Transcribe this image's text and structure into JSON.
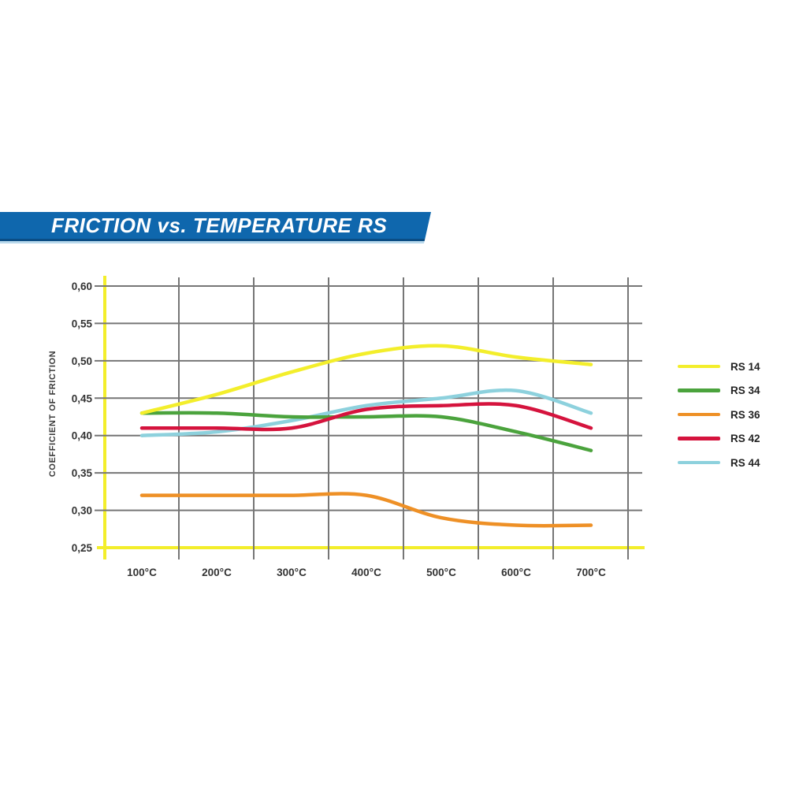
{
  "page": {
    "background": "#ffffff"
  },
  "banner": {
    "title": "FRICTION vs. TEMPERATURE RS",
    "bg_color": "#0f67ad",
    "edge_color": "#0b4d84",
    "strip_color": "#b9d9ec",
    "text_color": "#ffffff"
  },
  "chart_data": {
    "type": "line",
    "title": "FRICTION vs. TEMPERATURE RS",
    "xlabel": "",
    "ylabel": "COEFFICIENT OF FRICTION",
    "x_unit": "°C",
    "x": [
      100,
      200,
      300,
      400,
      500,
      600,
      700
    ],
    "x_tick_labels": [
      "100°C",
      "200°C",
      "300°C",
      "400°C",
      "500°C",
      "600°C",
      "700°C"
    ],
    "y_tick_values": [
      0.6,
      0.55,
      0.5,
      0.45,
      0.4,
      0.35,
      0.3,
      0.25
    ],
    "y_tick_labels": [
      "0,60",
      "0,55",
      "0,50",
      "0,45",
      "0,40",
      "0,35",
      "0,30",
      "0,25"
    ],
    "ylim": [
      0.25,
      0.6
    ],
    "grid": true,
    "grid_color": "#767676",
    "axis_color": "#f3ee2b",
    "legend_position": "right",
    "series": [
      {
        "name": "RS 14",
        "color": "#f3ee2b",
        "values": [
          0.43,
          0.455,
          0.485,
          0.51,
          0.52,
          0.505,
          0.495
        ]
      },
      {
        "name": "RS 34",
        "color": "#4ba33d",
        "values": [
          0.43,
          0.43,
          0.425,
          0.425,
          0.425,
          0.405,
          0.38
        ]
      },
      {
        "name": "RS 36",
        "color": "#ee9026",
        "values": [
          0.32,
          0.32,
          0.32,
          0.32,
          0.29,
          0.28,
          0.28
        ]
      },
      {
        "name": "RS 42",
        "color": "#d5133d",
        "values": [
          0.41,
          0.41,
          0.41,
          0.435,
          0.44,
          0.44,
          0.41
        ]
      },
      {
        "name": "RS 44",
        "color": "#8dd1dd",
        "values": [
          0.4,
          0.405,
          0.42,
          0.44,
          0.45,
          0.46,
          0.43
        ]
      }
    ]
  }
}
